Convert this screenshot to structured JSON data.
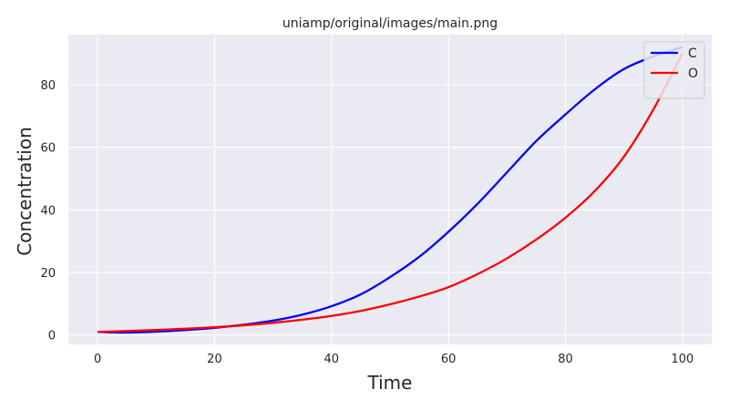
{
  "chart_data": {
    "type": "line",
    "title": "uniamp/original/images/main.png",
    "xlabel": "Time",
    "ylabel": "Concentration",
    "xlim": [
      -5,
      105
    ],
    "ylim": [
      -3,
      96
    ],
    "xticks": [
      0,
      20,
      40,
      60,
      80,
      100
    ],
    "yticks": [
      0,
      20,
      40,
      60,
      80
    ],
    "grid": true,
    "legend": "top-right",
    "background": "#eaeaf2",
    "gridcolor": "#ffffff",
    "x": [
      0,
      5,
      10,
      15,
      20,
      25,
      30,
      35,
      40,
      45,
      50,
      55,
      60,
      65,
      70,
      75,
      80,
      85,
      90,
      95,
      100
    ],
    "series": [
      {
        "name": "C",
        "color": "#0000ff",
        "values": [
          1,
          0.8,
          1.1,
          1.6,
          2.3,
          3.3,
          4.6,
          6.5,
          9.2,
          13,
          18.5,
          25,
          33,
          42,
          52,
          62,
          70.5,
          78.5,
          85,
          89,
          92
        ]
      },
      {
        "name": "O",
        "color": "#ff0000",
        "values": [
          1,
          1.3,
          1.6,
          2,
          2.5,
          3.1,
          3.9,
          4.9,
          6.1,
          7.7,
          9.8,
          12.3,
          15.3,
          19.5,
          24.5,
          30.5,
          37.5,
          46,
          57,
          72,
          90
        ]
      }
    ]
  }
}
